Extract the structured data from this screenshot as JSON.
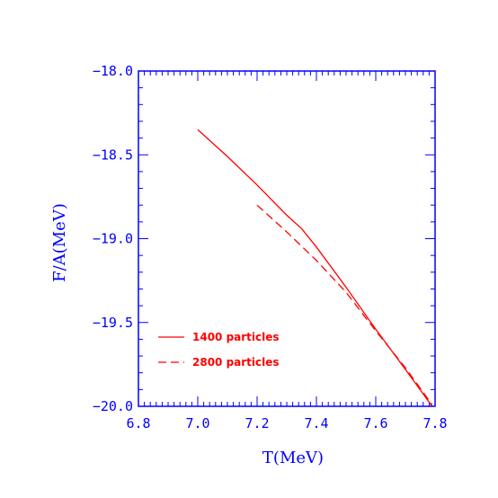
{
  "chart_data": {
    "type": "line",
    "xlabel": "T(MeV)",
    "ylabel": "F/A(MeV)",
    "xlim": [
      6.8,
      7.8
    ],
    "ylim": [
      -20.0,
      -18.0
    ],
    "x_ticks": [
      "6.8",
      "7.0",
      "7.2",
      "7.4",
      "7.6",
      "7.8"
    ],
    "y_ticks": [
      "-18.0",
      "-18.5",
      "-19.0",
      "-19.5",
      "-20.0"
    ],
    "grid": false,
    "legend_position": "bottom-left",
    "series": [
      {
        "name": "1400 particles",
        "style": "solid",
        "color": "#ff0000",
        "x": [
          7.0,
          7.1,
          7.2,
          7.3,
          7.35,
          7.4,
          7.5,
          7.6,
          7.7,
          7.79
        ],
        "y": [
          -18.35,
          -18.51,
          -18.68,
          -18.86,
          -18.94,
          -19.05,
          -19.29,
          -19.54,
          -19.78,
          -20.0
        ]
      },
      {
        "name": "2800 particles",
        "style": "dashed",
        "color": "#ff0000",
        "x": [
          7.2,
          7.3,
          7.4,
          7.5,
          7.6,
          7.7,
          7.79
        ],
        "y": [
          -18.8,
          -18.96,
          -19.13,
          -19.32,
          -19.55,
          -19.77,
          -19.99
        ]
      }
    ],
    "colors": {
      "axis": "#0000ff",
      "data": "#ff0000"
    }
  }
}
